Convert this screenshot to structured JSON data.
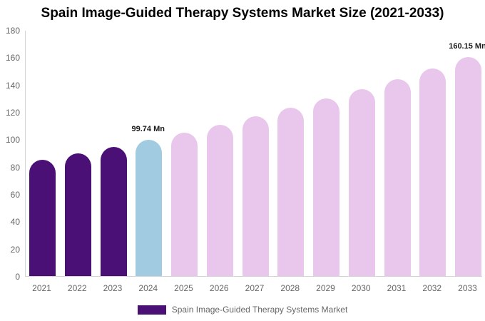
{
  "title": "Spain Image-Guided Therapy Systems Market Size (2021-2033)",
  "legend": {
    "label": "Spain Image-Guided Therapy Systems Market",
    "swatch_color": "#4a1076"
  },
  "colors": {
    "historical_bar": "#4a1076",
    "current_year_bar": "#a1cbe0",
    "forecast_bar": "#e9c7ec",
    "axis_line": "#d4d4d4",
    "tick_text": "#666666",
    "annotation_text": "#1a1a1a",
    "title_text": "#000000"
  },
  "chart_data": {
    "type": "bar",
    "title": "Spain Image-Guided Therapy Systems Market Size (2021-2033)",
    "unit": "Mn",
    "categories": [
      "2021",
      "2022",
      "2023",
      "2024",
      "2025",
      "2026",
      "2027",
      "2028",
      "2029",
      "2030",
      "2031",
      "2032",
      "2033"
    ],
    "values": [
      85.2,
      89.8,
      94.6,
      99.74,
      105.13,
      110.82,
      116.81,
      123.13,
      129.79,
      136.82,
      144.22,
      152.02,
      160.15
    ],
    "xlabel": "",
    "ylabel": "",
    "ylim": [
      0,
      180
    ],
    "ytick_step": 20,
    "grid": false,
    "legend_position": "bottom",
    "annotations": [
      {
        "category": "2024",
        "text": "99.74 Mn"
      },
      {
        "category": "2033",
        "text": "160.15 Mn"
      }
    ],
    "segments": [
      {
        "name": "historical",
        "from": 0,
        "to": 2,
        "color": "#4a1076"
      },
      {
        "name": "current-year",
        "from": 3,
        "to": 3,
        "color": "#a1cbe0"
      },
      {
        "name": "forecast",
        "from": 4,
        "to": 12,
        "color": "#e9c7ec"
      }
    ]
  }
}
